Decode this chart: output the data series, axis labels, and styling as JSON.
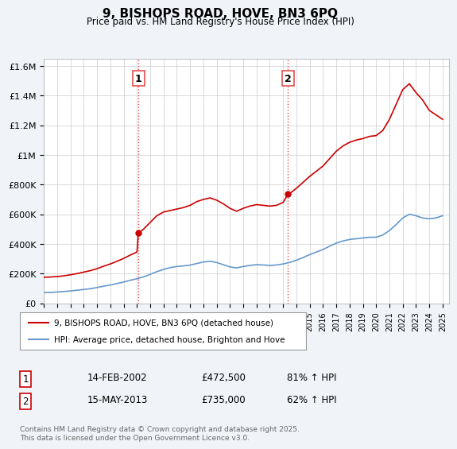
{
  "title": "9, BISHOPS ROAD, HOVE, BN3 6PQ",
  "subtitle": "Price paid vs. HM Land Registry's House Price Index (HPI)",
  "ylabel_ticks": [
    "£0",
    "£200K",
    "£400K",
    "£600K",
    "£800K",
    "£1M",
    "£1.2M",
    "£1.4M",
    "£1.6M"
  ],
  "ytick_values": [
    0,
    200000,
    400000,
    600000,
    800000,
    1000000,
    1200000,
    1400000,
    1600000
  ],
  "ylim": [
    0,
    1650000
  ],
  "xlim_start": 1995,
  "xlim_end": 2025.5,
  "sale1_x": 2002.11,
  "sale1_y": 472500,
  "sale2_x": 2013.37,
  "sale2_y": 735000,
  "sale1_label": "1",
  "sale2_label": "2",
  "vline_color": "#e05050",
  "vline_style": ":",
  "red_line_color": "#cc0000",
  "blue_line_color": "#6699cc",
  "legend1": "9, BISHOPS ROAD, HOVE, BN3 6PQ (detached house)",
  "legend2": "HPI: Average price, detached house, Brighton and Hove",
  "table_row1": [
    "1",
    "14-FEB-2002",
    "£472,500",
    "81% ↑ HPI"
  ],
  "table_row2": [
    "2",
    "15-MAY-2013",
    "£735,000",
    "62% ↑ HPI"
  ],
  "footer": "Contains HM Land Registry data © Crown copyright and database right 2025.\nThis data is licensed under the Open Government Licence v3.0.",
  "bg_color": "#f0f4f8",
  "plot_bg_color": "#ffffff",
  "grid_color": "#cccccc",
  "hpi_years": [
    1995,
    1995.5,
    1996,
    1996.5,
    1997,
    1997.5,
    1998,
    1998.5,
    1999,
    1999.5,
    2000,
    2000.5,
    2001,
    2001.5,
    2002,
    2002.5,
    2003,
    2003.5,
    2004,
    2004.5,
    2005,
    2005.5,
    2006,
    2006.5,
    2007,
    2007.5,
    2008,
    2008.5,
    2009,
    2009.5,
    2010,
    2010.5,
    2011,
    2011.5,
    2012,
    2012.5,
    2013,
    2013.5,
    2014,
    2014.5,
    2015,
    2015.5,
    2016,
    2016.5,
    2017,
    2017.5,
    2018,
    2018.5,
    2019,
    2019.5,
    2020,
    2020.5,
    2021,
    2021.5,
    2022,
    2022.5,
    2023,
    2023.5,
    2024,
    2024.5,
    2025
  ],
  "hpi_vals": [
    72000,
    73000,
    76000,
    79000,
    83000,
    88000,
    93000,
    98000,
    106000,
    115000,
    123000,
    133000,
    143000,
    155000,
    165000,
    178000,
    195000,
    213000,
    228000,
    240000,
    248000,
    252000,
    257000,
    268000,
    278000,
    283000,
    275000,
    260000,
    245000,
    238000,
    248000,
    255000,
    260000,
    258000,
    255000,
    258000,
    265000,
    275000,
    290000,
    308000,
    328000,
    345000,
    362000,
    385000,
    405000,
    420000,
    430000,
    435000,
    440000,
    445000,
    445000,
    460000,
    490000,
    530000,
    575000,
    600000,
    590000,
    575000,
    570000,
    575000,
    590000
  ],
  "red_years": [
    1995,
    1995.5,
    1996,
    1996.5,
    1997,
    1997.5,
    1998,
    1998.5,
    1999,
    1999.5,
    2000,
    2000.5,
    2001,
    2001.5,
    2002,
    2002.11,
    2002.5,
    2003,
    2003.5,
    2004,
    2004.5,
    2005,
    2005.5,
    2006,
    2006.5,
    2007,
    2007.5,
    2008,
    2008.5,
    2009,
    2009.5,
    2010,
    2010.5,
    2011,
    2011.5,
    2012,
    2012.5,
    2013,
    2013.37,
    2013.5,
    2014,
    2014.5,
    2015,
    2015.5,
    2016,
    2016.5,
    2017,
    2017.5,
    2018,
    2018.5,
    2019,
    2019.5,
    2020,
    2020.5,
    2021,
    2021.5,
    2022,
    2022.5,
    2023,
    2023.5,
    2024,
    2024.5,
    2025
  ],
  "red_vals": [
    175000,
    177000,
    180000,
    185000,
    192000,
    200000,
    210000,
    220000,
    233000,
    250000,
    265000,
    283000,
    302000,
    325000,
    345000,
    472500,
    500000,
    545000,
    590000,
    615000,
    625000,
    635000,
    645000,
    660000,
    685000,
    700000,
    710000,
    695000,
    670000,
    640000,
    620000,
    640000,
    655000,
    665000,
    660000,
    655000,
    660000,
    680000,
    735000,
    740000,
    775000,
    815000,
    855000,
    890000,
    925000,
    975000,
    1025000,
    1060000,
    1085000,
    1100000,
    1110000,
    1125000,
    1130000,
    1165000,
    1240000,
    1340000,
    1440000,
    1480000,
    1420000,
    1370000,
    1300000,
    1270000,
    1240000
  ]
}
